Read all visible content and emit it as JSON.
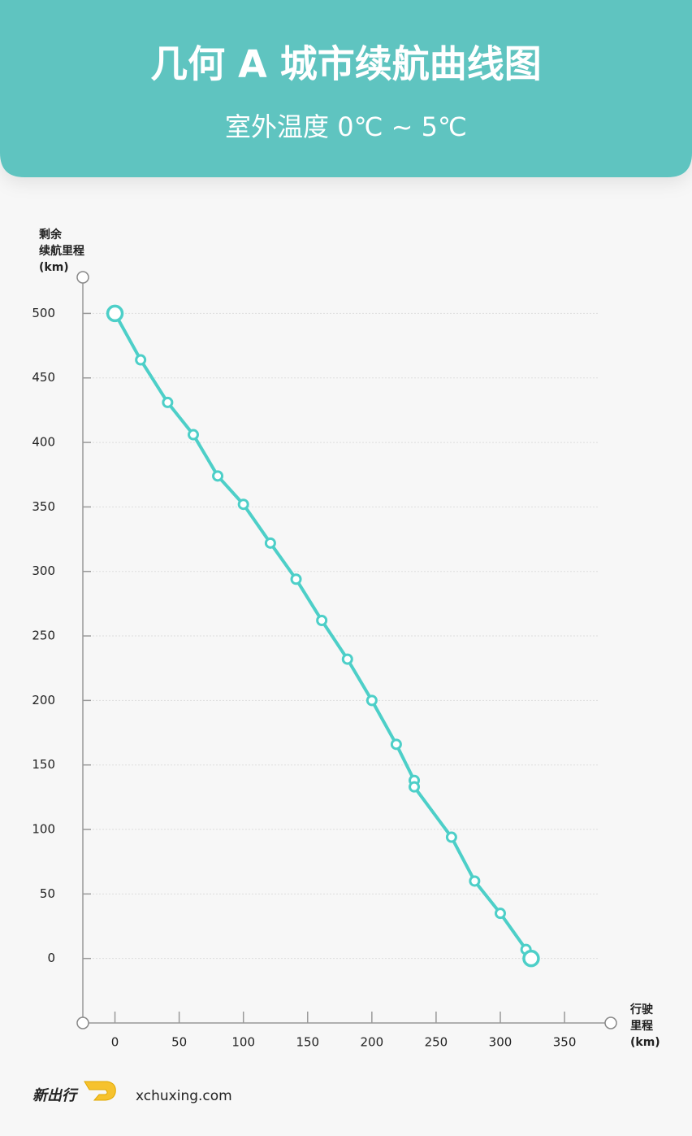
{
  "chart_data": {
    "type": "line",
    "title": "几何 A 城市续航曲线图",
    "subtitle": "室外温度 0℃ ~ 5℃",
    "ylabel": [
      "剩余",
      "续航里程",
      "(km)"
    ],
    "xlabel": [
      "行驶",
      "里程",
      "(km)"
    ],
    "xlim": [
      -25,
      386
    ],
    "ylim": [
      -50,
      528
    ],
    "xticks": [
      0,
      50,
      100,
      150,
      200,
      250,
      300,
      350
    ],
    "yticks": [
      0,
      50,
      100,
      150,
      200,
      250,
      300,
      350,
      400,
      450,
      500
    ],
    "grid": true,
    "series": [
      {
        "color": "#4dcfc8",
        "x": [
          0,
          20,
          41,
          61,
          80,
          100,
          121,
          141,
          161,
          181,
          200,
          219,
          233,
          233,
          262,
          280,
          300,
          320,
          324
        ],
        "values": [
          500,
          464,
          431,
          406,
          374,
          352,
          322,
          294,
          262,
          232,
          200,
          166,
          138,
          133,
          94,
          60,
          35,
          7,
          0
        ]
      }
    ]
  },
  "footer": {
    "brand": "新出行",
    "site": "xchuxing.com"
  }
}
